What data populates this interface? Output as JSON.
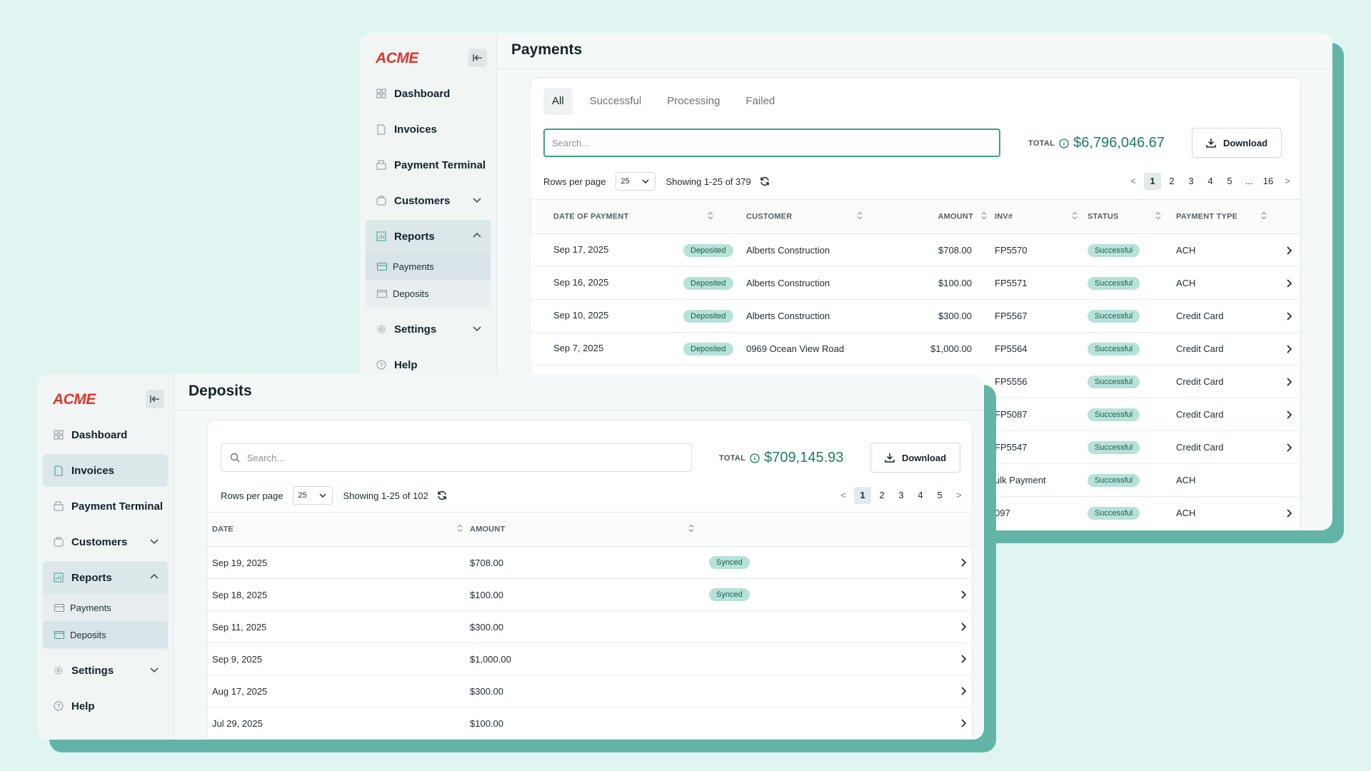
{
  "payments_window": {
    "logo": "ACME",
    "title": "Payments",
    "nav": {
      "dashboard": "Dashboard",
      "invoices": "Invoices",
      "payment_terminal": "Payment Terminal",
      "customers": "Customers",
      "reports": "Reports",
      "payments": "Payments",
      "deposits": "Deposits",
      "settings": "Settings",
      "help": "Help"
    },
    "tabs": [
      "All",
      "Successful",
      "Processing",
      "Failed"
    ],
    "active_tab": "All",
    "search_placeholder": "Search...",
    "total_label": "TOTAL",
    "total_value": "$6,796,046.67",
    "download_label": "Download",
    "rows_per_page_label": "Rows per page",
    "rows_per_page_value": "25",
    "showing": "Showing 1-25 of 379",
    "pager": {
      "prev": "<",
      "pages": [
        "1",
        "2",
        "3",
        "4",
        "5",
        "...",
        "16"
      ],
      "current": "1",
      "next": ">"
    },
    "columns": [
      "DATE OF PAYMENT",
      "CUSTOMER",
      "AMOUNT",
      "INV#",
      "STATUS",
      "PAYMENT TYPE"
    ],
    "rows": [
      {
        "date": "Sep 17, 2025",
        "deposit": "Deposited",
        "customer": "Alberts Construction",
        "amount": "$708.00",
        "inv": "FP5570",
        "status": "Successful",
        "type": "ACH"
      },
      {
        "date": "Sep 16, 2025",
        "deposit": "Deposited",
        "customer": "Alberts Construction",
        "amount": "$100.00",
        "inv": "FP5571",
        "status": "Successful",
        "type": "ACH"
      },
      {
        "date": "Sep 10, 2025",
        "deposit": "Deposited",
        "customer": "Alberts Construction",
        "amount": "$300.00",
        "inv": "FP5567",
        "status": "Successful",
        "type": "Credit Card"
      },
      {
        "date": "Sep 7, 2025",
        "deposit": "Deposited",
        "customer": "0969 Ocean View Road",
        "amount": "$1,000.00",
        "inv": "FP5564",
        "status": "Successful",
        "type": "Credit Card"
      },
      {
        "date": "",
        "deposit": "",
        "customer": "",
        "amount": "",
        "inv": "FP5556",
        "status": "Successful",
        "type": "Credit Card"
      },
      {
        "date": "",
        "deposit": "",
        "customer": "",
        "amount": "",
        "inv": "FP5087",
        "status": "Successful",
        "type": "Credit Card"
      },
      {
        "date": "",
        "deposit": "",
        "customer": "",
        "amount": "",
        "inv": "FP5547",
        "status": "Successful",
        "type": "Credit Card"
      },
      {
        "date": "",
        "deposit": "",
        "customer": "",
        "amount": "",
        "inv": "ulk Payment",
        "status": "Successful",
        "type": "ACH"
      },
      {
        "date": "",
        "deposit": "",
        "customer": "",
        "amount": "",
        "inv": "097",
        "status": "Successful",
        "type": "ACH"
      }
    ]
  },
  "deposits_window": {
    "logo": "ACME",
    "title": "Deposits",
    "nav": {
      "dashboard": "Dashboard",
      "invoices": "Invoices",
      "payment_terminal": "Payment Terminal",
      "customers": "Customers",
      "reports": "Reports",
      "payments": "Payments",
      "deposits": "Deposits",
      "settings": "Settings",
      "help": "Help"
    },
    "search_placeholder": "Search...",
    "total_label": "TOTAL",
    "total_value": "$709,145.93",
    "download_label": "Download",
    "rows_per_page_label": "Rows per page",
    "rows_per_page_value": "25",
    "showing": "Showing 1-25 of 102",
    "pager": {
      "prev": "<",
      "pages": [
        "1",
        "2",
        "3",
        "4",
        "5"
      ],
      "current": "1",
      "next": ">"
    },
    "columns": [
      "DATE",
      "AMOUNT"
    ],
    "rows": [
      {
        "date": "Sep 19, 2025",
        "amount": "$708.00",
        "status": "Synced"
      },
      {
        "date": "Sep 18, 2025",
        "amount": "$100.00",
        "status": "Synced"
      },
      {
        "date": "Sep 11, 2025",
        "amount": "$300.00",
        "status": ""
      },
      {
        "date": "Sep 9, 2025",
        "amount": "$1,000.00",
        "status": ""
      },
      {
        "date": "Aug 17, 2025",
        "amount": "$300.00",
        "status": ""
      },
      {
        "date": "Jul 29, 2025",
        "amount": "$100.00",
        "status": ""
      }
    ]
  },
  "colors": {
    "background": "#e0f5f1",
    "shadow": "#62b5a6",
    "accent": "#1f7a68",
    "badge": "#b6e2d8",
    "logo": "#e03528"
  }
}
